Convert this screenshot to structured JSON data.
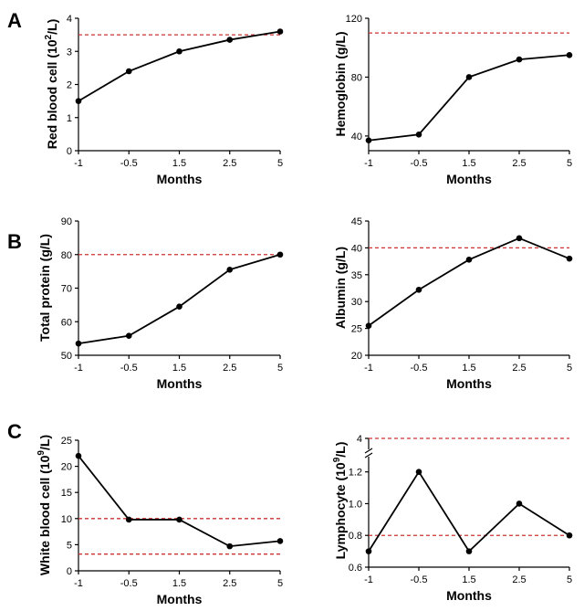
{
  "panel_letters": [
    "A",
    "B",
    "C"
  ],
  "chart_data": [
    {
      "type": "line",
      "panel": "A",
      "xlabel": "Months",
      "ylabel_main": "Red blood cell (10",
      "ylabel_sup": "2",
      "ylabel_tail": "/L)",
      "categories": [
        "-1",
        "-0.5",
        "1.5",
        "2.5",
        "5"
      ],
      "values": [
        1.5,
        2.4,
        3.0,
        3.35,
        3.6
      ],
      "ylim": [
        0,
        4
      ],
      "yticks": [
        0,
        1,
        2,
        3,
        4
      ],
      "reference_lines": [
        3.5
      ],
      "line_color": "#000000",
      "reference_color": "#cc3333"
    },
    {
      "type": "line",
      "panel": "A",
      "xlabel": "Months",
      "ylabel_main": "Hemoglobin (g/L)",
      "categories": [
        "-1",
        "-0.5",
        "1.5",
        "2.5",
        "5"
      ],
      "values": [
        37,
        41,
        80,
        92,
        95
      ],
      "ylim": [
        30,
        120
      ],
      "yticks": [
        40,
        80,
        120
      ],
      "reference_lines": [
        110
      ],
      "line_color": "#000000",
      "reference_color": "#cc3333"
    },
    {
      "type": "line",
      "panel": "B",
      "xlabel": "Months",
      "ylabel_main": "Total protein (g/L)",
      "categories": [
        "-1",
        "-0.5",
        "1.5",
        "2.5",
        "5"
      ],
      "values": [
        53.5,
        55.8,
        64.5,
        75.5,
        80
      ],
      "ylim": [
        50,
        90
      ],
      "yticks": [
        50,
        60,
        70,
        80,
        90
      ],
      "reference_lines": [
        80
      ],
      "line_color": "#000000",
      "reference_color": "#cc3333"
    },
    {
      "type": "line",
      "panel": "B",
      "xlabel": "Months",
      "ylabel_main": "Albumin (g/L)",
      "categories": [
        "-1",
        "-0.5",
        "1.5",
        "2.5",
        "5"
      ],
      "values": [
        25.5,
        32.2,
        37.8,
        41.8,
        38
      ],
      "ylim": [
        20,
        45
      ],
      "yticks": [
        20,
        25,
        30,
        35,
        40,
        45
      ],
      "reference_lines": [
        40
      ],
      "line_color": "#000000",
      "reference_color": "#cc3333"
    },
    {
      "type": "line",
      "panel": "C",
      "xlabel": "Months",
      "ylabel_main": "White blood cell (10",
      "ylabel_sup": "9",
      "ylabel_tail": "/L)",
      "categories": [
        "-1",
        "-0.5",
        "1.5",
        "2.5",
        "5"
      ],
      "values": [
        22,
        9.8,
        9.8,
        4.7,
        5.7
      ],
      "ylim": [
        0,
        25
      ],
      "yticks": [
        0,
        5,
        10,
        15,
        20,
        25
      ],
      "reference_lines": [
        10,
        3.2
      ],
      "line_color": "#000000",
      "reference_color": "#cc3333"
    },
    {
      "type": "line",
      "panel": "C",
      "xlabel": "Months",
      "ylabel_main": "Lymphocyte (10",
      "ylabel_sup": "9",
      "ylabel_tail": "/L)",
      "categories": [
        "-1",
        "-0.5",
        "1.5",
        "2.5",
        "5"
      ],
      "values": [
        0.7,
        1.2,
        0.7,
        1.0,
        0.8
      ],
      "ylim": [
        0.6,
        1.25
      ],
      "yticks": [
        0.6,
        0.8,
        1.0,
        1.2
      ],
      "ytick_labels": [
        "0.6",
        "0.8",
        "1.0",
        "1.2"
      ],
      "axis_break": true,
      "upper_tick": 4,
      "upper_tick_label": "4",
      "reference_lines": [
        0.8
      ],
      "upper_reference_line": 4,
      "line_color": "#000000",
      "reference_color": "#cc3333"
    }
  ]
}
